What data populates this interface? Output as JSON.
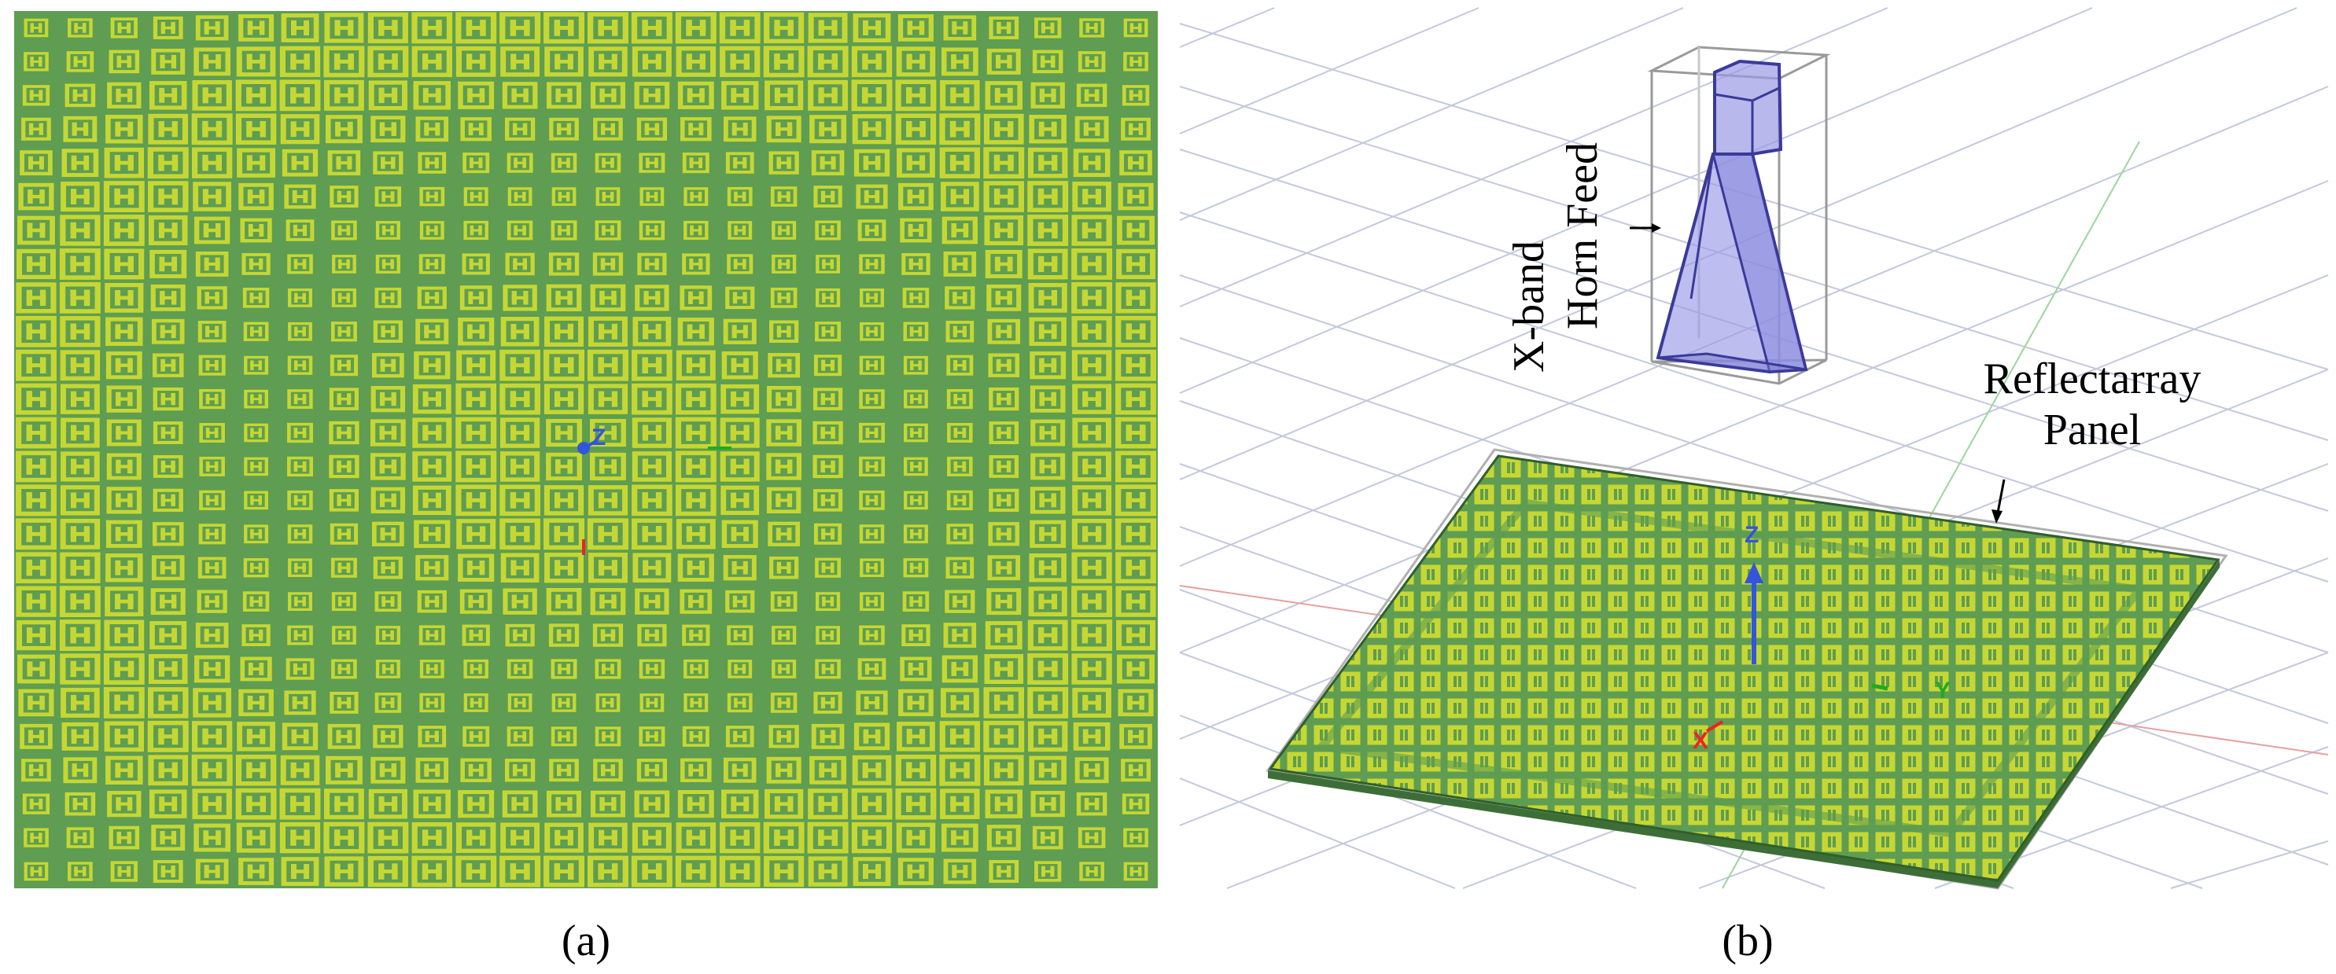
{
  "panels": {
    "a": {
      "caption": "(a)",
      "axis_label": "Z"
    },
    "b": {
      "caption": "(b)",
      "horn_label_line1": "X-band",
      "horn_label_line2": "Horn Feed",
      "panel_label_line1": "Reflectarray",
      "panel_label_line2": "Panel",
      "axis_z": "Z",
      "axis_x": "X",
      "axis_y": "Y"
    }
  },
  "colors": {
    "substrate_green": "#5e9d52",
    "patch_yellow": "#c6d733",
    "patch_yellow_light": "#d6e245",
    "grid_line": "#c3c8dc",
    "horn_fill": "#9a9ae6",
    "horn_edge": "#3a3a9a",
    "axis_z": "#3355dd",
    "axis_x": "#ee2222",
    "axis_y": "#22aa22"
  },
  "array": {
    "rows": 26,
    "cols": 26
  }
}
